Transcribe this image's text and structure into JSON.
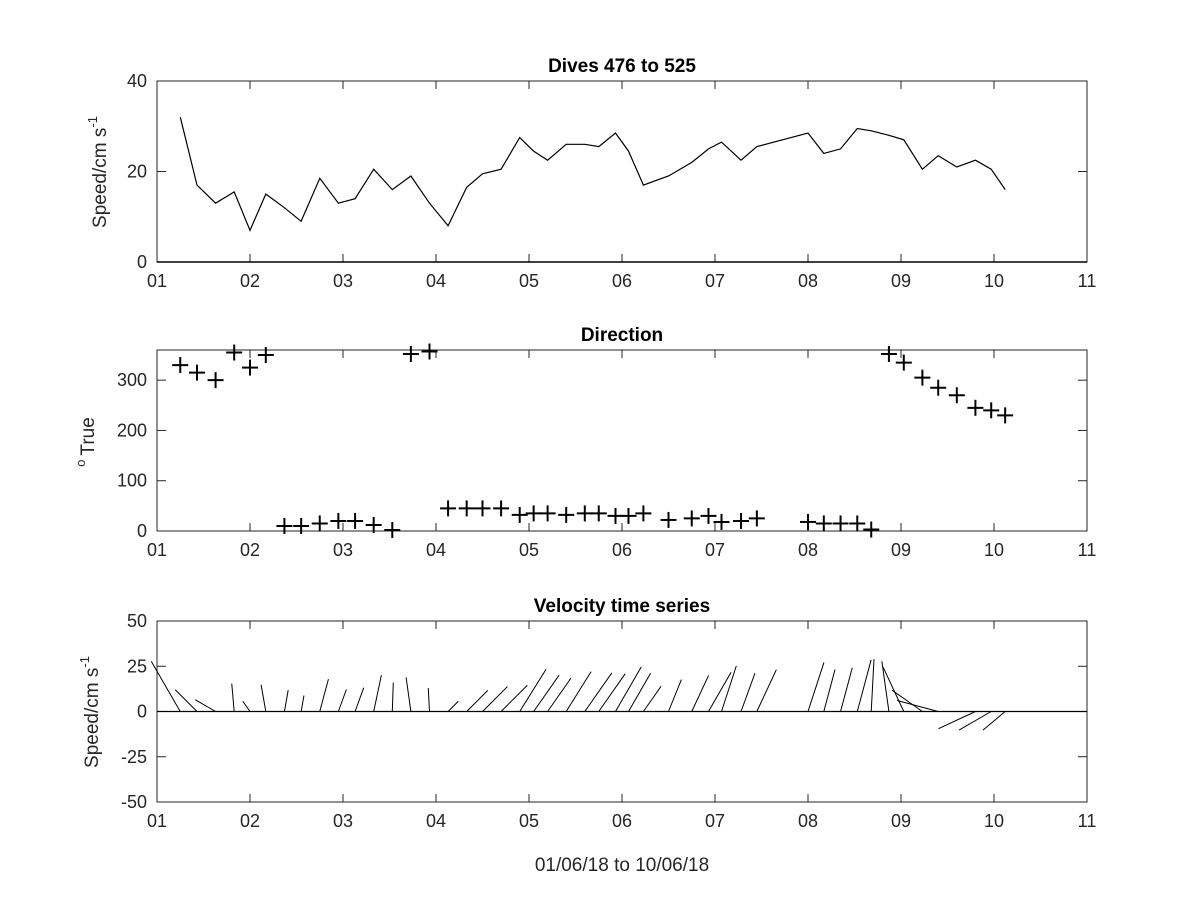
{
  "chart_data": [
    {
      "type": "line",
      "title": "Dives 476 to 525",
      "ylabel": "Speed/cm s",
      "ylabel_superscript": "-1",
      "xlabel": "",
      "xlim": [
        1,
        11
      ],
      "ylim": [
        0,
        40
      ],
      "xticks": [
        1,
        2,
        3,
        4,
        5,
        6,
        7,
        8,
        9,
        10,
        11
      ],
      "xticklabels": [
        "01",
        "02",
        "03",
        "04",
        "05",
        "06",
        "07",
        "08",
        "09",
        "10",
        "11"
      ],
      "yticks": [
        0,
        20,
        40
      ],
      "yticklabels": [
        "0",
        "20",
        "40"
      ],
      "grid": false,
      "line_color": "#000000",
      "x": [
        1.25,
        1.43,
        1.63,
        1.83,
        2.0,
        2.17,
        2.37,
        2.55,
        2.75,
        2.95,
        3.13,
        3.33,
        3.53,
        3.73,
        3.93,
        4.13,
        4.33,
        4.5,
        4.7,
        4.9,
        5.05,
        5.2,
        5.4,
        5.6,
        5.75,
        5.93,
        6.07,
        6.23,
        6.5,
        6.75,
        6.93,
        7.07,
        7.28,
        7.45,
        8.0,
        8.17,
        8.35,
        8.53,
        8.68,
        8.87,
        9.03,
        9.23,
        9.4,
        9.6,
        9.8,
        9.97,
        10.12
      ],
      "y": [
        32,
        17,
        13,
        15.5,
        7,
        15,
        12,
        9,
        18.5,
        13,
        14,
        20.5,
        16,
        19,
        13,
        8,
        16.5,
        19.5,
        20.5,
        27.5,
        24.5,
        22.5,
        26,
        26,
        25.5,
        28.5,
        24.5,
        17,
        19,
        22,
        25,
        26.5,
        22.5,
        25.5,
        28.5,
        24,
        25,
        29.5,
        29,
        28,
        27,
        20.5,
        23.5,
        21,
        22.5,
        20.5,
        16
      ]
    },
    {
      "type": "scatter",
      "title": "Direction",
      "ylabel": "True",
      "ylabel_prefix_superscript": "o",
      "xlabel": "",
      "xlim": [
        1,
        11
      ],
      "ylim": [
        0,
        360
      ],
      "xticks": [
        1,
        2,
        3,
        4,
        5,
        6,
        7,
        8,
        9,
        10,
        11
      ],
      "xticklabels": [
        "01",
        "02",
        "03",
        "04",
        "05",
        "06",
        "07",
        "08",
        "09",
        "10",
        "11"
      ],
      "yticks": [
        0,
        100,
        200,
        300
      ],
      "yticklabels": [
        "0",
        "100",
        "200",
        "300"
      ],
      "grid": false,
      "marker": "+",
      "marker_color": "#000000",
      "x": [
        1.25,
        1.43,
        1.63,
        1.83,
        2.0,
        2.17,
        2.37,
        2.55,
        2.75,
        2.95,
        3.13,
        3.33,
        3.53,
        3.73,
        3.93,
        4.13,
        4.33,
        4.5,
        4.7,
        4.9,
        5.05,
        5.2,
        5.4,
        5.6,
        5.75,
        5.93,
        6.07,
        6.23,
        6.5,
        6.75,
        6.93,
        7.07,
        7.28,
        7.45,
        8.0,
        8.17,
        8.35,
        8.53,
        8.68,
        8.87,
        9.03,
        9.23,
        9.4,
        9.6,
        9.8,
        9.97,
        10.12
      ],
      "y": [
        330,
        315,
        300,
        355,
        325,
        350,
        10,
        10,
        15,
        20,
        20,
        12,
        2,
        352,
        357,
        45,
        45,
        45,
        45,
        32,
        35,
        35,
        32,
        35,
        35,
        30,
        30,
        35,
        22,
        25,
        30,
        18,
        20,
        25,
        18,
        15,
        15,
        15,
        3,
        352,
        335,
        305,
        285,
        270,
        245,
        240,
        230
      ]
    },
    {
      "type": "quiver",
      "title": "Velocity time series",
      "ylabel": "Speed/cm s",
      "ylabel_superscript": "-1",
      "xlabel": "01/06/18 to 10/06/18",
      "xlim": [
        1,
        11
      ],
      "ylim": [
        -50,
        50
      ],
      "xticks": [
        1,
        2,
        3,
        4,
        5,
        6,
        7,
        8,
        9,
        10,
        11
      ],
      "xticklabels": [
        "01",
        "02",
        "03",
        "04",
        "05",
        "06",
        "07",
        "08",
        "09",
        "10",
        "11"
      ],
      "yticks": [
        -50,
        -25,
        0,
        25,
        50
      ],
      "yticklabels": [
        "-50",
        "-25",
        "0",
        "25",
        "50"
      ],
      "grid": false,
      "baseline": 0,
      "line_color": "#000000",
      "x": [
        1.25,
        1.43,
        1.63,
        1.83,
        2.0,
        2.17,
        2.37,
        2.55,
        2.75,
        2.95,
        3.13,
        3.33,
        3.53,
        3.73,
        3.93,
        4.13,
        4.33,
        4.5,
        4.7,
        4.9,
        5.05,
        5.2,
        5.4,
        5.6,
        5.75,
        5.93,
        6.07,
        6.23,
        6.5,
        6.75,
        6.93,
        7.07,
        7.28,
        7.45,
        8.0,
        8.17,
        8.35,
        8.53,
        8.68,
        8.87,
        9.03,
        9.23,
        9.4,
        9.6,
        9.8,
        9.97,
        10.12
      ],
      "speed": [
        32,
        17,
        13,
        15.5,
        7,
        15,
        12,
        9,
        18.5,
        13,
        14,
        20.5,
        16,
        19,
        13,
        8,
        16.5,
        19.5,
        20.5,
        27.5,
        24.5,
        22.5,
        26,
        26,
        25.5,
        28.5,
        24.5,
        17,
        19,
        22,
        25,
        26.5,
        22.5,
        25.5,
        28.5,
        24,
        25,
        29.5,
        29,
        28,
        27,
        20.5,
        23.5,
        21,
        22.5,
        20.5,
        16
      ],
      "direction_deg_true": [
        330,
        315,
        300,
        355,
        325,
        350,
        10,
        10,
        15,
        20,
        20,
        12,
        2,
        352,
        357,
        45,
        45,
        45,
        45,
        32,
        35,
        35,
        32,
        35,
        35,
        30,
        30,
        35,
        22,
        25,
        30,
        18,
        20,
        25,
        18,
        15,
        15,
        15,
        3,
        352,
        335,
        305,
        285,
        270,
        245,
        240,
        230
      ]
    }
  ]
}
